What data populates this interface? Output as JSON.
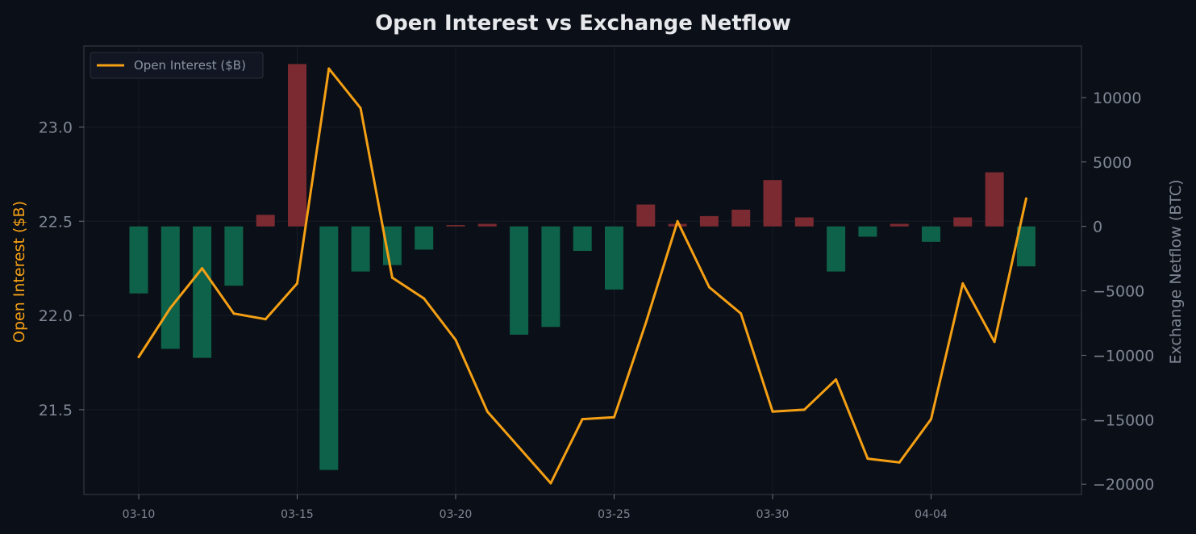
{
  "chart_data": {
    "type": "bar+line",
    "title": "Open Interest vs Exchange Netflow",
    "ylabel_left": "Open Interest ($B)",
    "ylabel_right": "Exchange Netflow (BTC)",
    "x": [
      "03-10",
      "03-11",
      "03-12",
      "03-13",
      "03-14",
      "03-15",
      "03-16",
      "03-17",
      "03-18",
      "03-19",
      "03-20",
      "03-21",
      "03-22",
      "03-23",
      "03-24",
      "03-25",
      "03-26",
      "03-27",
      "03-28",
      "03-29",
      "03-30",
      "03-31",
      "04-01",
      "04-02",
      "04-03",
      "04-04",
      "04-05",
      "04-06",
      "04-07"
    ],
    "x_ticks": [
      "03-10",
      "03-15",
      "03-20",
      "03-25",
      "03-30",
      "04-04"
    ],
    "open_interest": {
      "name": "Open Interest ($B)",
      "color": "#f5a014",
      "values": [
        21.78,
        22.04,
        22.25,
        22.01,
        21.98,
        22.17,
        23.31,
        23.1,
        22.2,
        22.09,
        21.87,
        21.49,
        21.3,
        21.11,
        21.45,
        21.46,
        21.96,
        22.5,
        22.15,
        22.01,
        21.49,
        21.5,
        21.66,
        21.24,
        21.22,
        21.45,
        22.17,
        21.86,
        22.62
      ]
    },
    "netflow": {
      "inflow_color": "#7a2a30",
      "outflow_color": "#0e624a",
      "values": [
        -5200,
        -9500,
        -10200,
        -4600,
        900,
        12600,
        -18900,
        -3500,
        -3000,
        -1800,
        100,
        200,
        -8400,
        -7800,
        -1900,
        -4900,
        1700,
        200,
        800,
        1300,
        3600,
        700,
        -3500,
        -800,
        200,
        -1200,
        700,
        4200,
        -3100
      ]
    },
    "ylim_left": [
      21.05,
      23.43
    ],
    "ylim_right": [
      -20800,
      14000
    ],
    "yticks_left": [
      "21.5",
      "22.0",
      "22.5",
      "23.0"
    ],
    "yticks_right": [
      "−20000",
      "−15000",
      "−10000",
      "−5000",
      "0",
      "5000",
      "10000"
    ],
    "grid": true,
    "legend": "top-left"
  }
}
